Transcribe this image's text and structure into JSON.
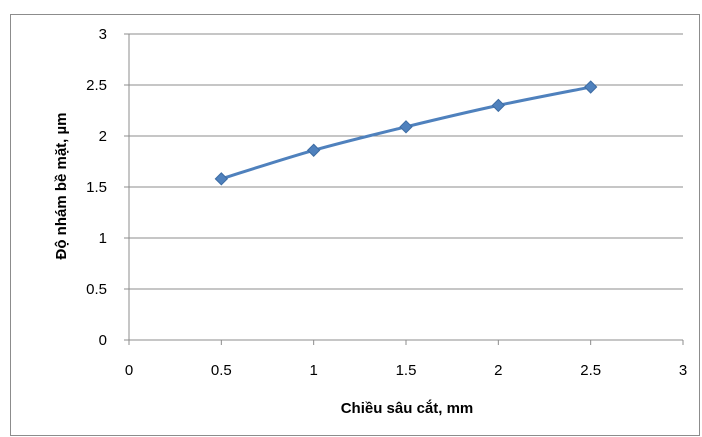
{
  "chart_data": {
    "type": "line",
    "title": "",
    "xlabel": "Chiều sâu cắt, mm",
    "ylabel": "Độ nhám bề mặt, µm",
    "xlim": [
      0,
      3
    ],
    "ylim": [
      0,
      3
    ],
    "xticks": [
      "0",
      "0.5",
      "1",
      "1.5",
      "2",
      "2.5",
      "3"
    ],
    "yticks": [
      "0",
      "0.5",
      "1",
      "1.5",
      "2",
      "2.5",
      "3"
    ],
    "grid": "horizontal",
    "legend": "none",
    "series": [
      {
        "color": "#4f81bd",
        "marker": "diamond",
        "x": [
          0.5,
          1,
          1.5,
          2,
          2.5
        ],
        "y": [
          1.58,
          1.86,
          2.09,
          2.3,
          2.48
        ]
      }
    ]
  }
}
